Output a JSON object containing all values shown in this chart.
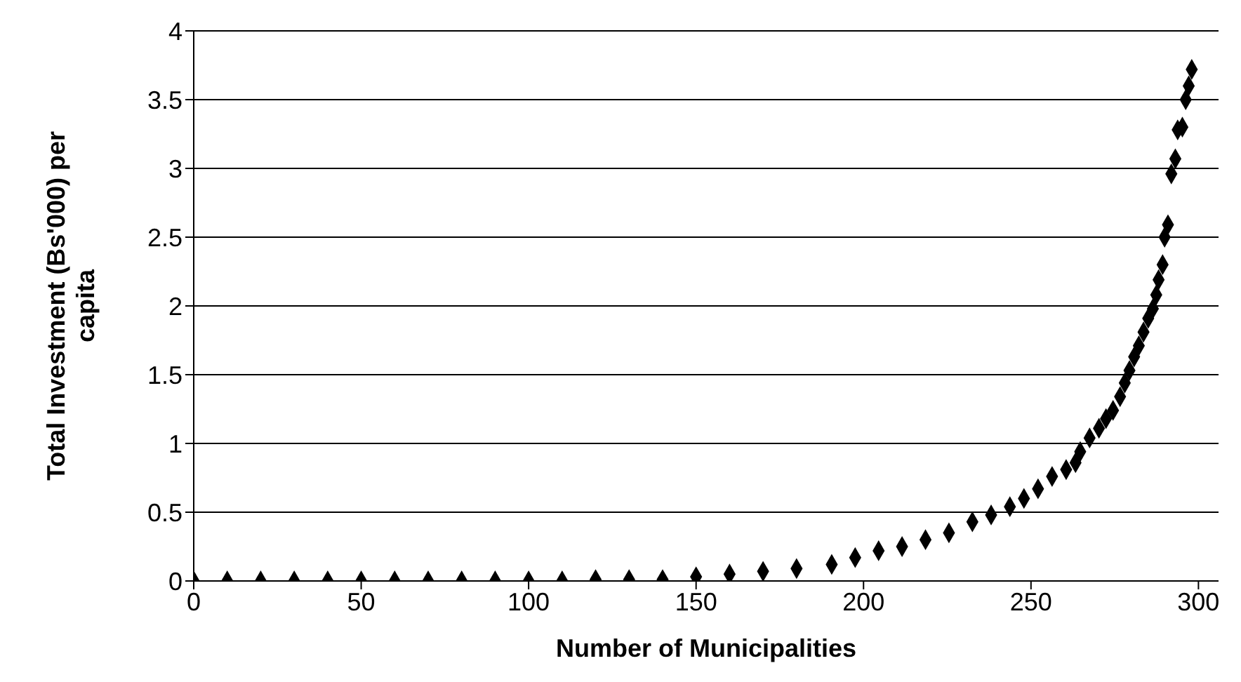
{
  "chart_data": {
    "type": "scatter",
    "xlabel": "Number of Municipalities",
    "ylabel": "Total Investment (Bs'000) per capita",
    "series": [
      {
        "color": "#000000",
        "x": [
          0,
          10,
          20,
          30,
          40,
          50,
          60,
          70,
          80,
          90,
          100,
          110,
          120,
          130,
          140,
          150,
          160,
          170,
          180,
          190.5,
          197.5,
          204.5,
          211.5,
          218.5,
          225.5,
          232.5,
          238.1,
          243.7,
          247.9,
          252.1,
          256.3,
          260.5,
          263.3,
          264.7,
          267.5,
          270.3,
          272.4,
          274.5,
          276.6,
          278,
          279.4,
          280.8,
          282.2,
          283.6,
          285,
          286.4,
          287.4,
          288.1,
          289.3,
          289.9,
          290.9,
          291.9,
          293.1,
          293.8,
          295.2,
          296.2,
          297.1,
          298
        ],
        "values": [
          0,
          0,
          0,
          0,
          0,
          0,
          0,
          0,
          0,
          0,
          0,
          0,
          0.01,
          0.01,
          0.01,
          0.03,
          0.05,
          0.07,
          0.09,
          0.12,
          0.17,
          0.22,
          0.25,
          0.3,
          0.35,
          0.43,
          0.48,
          0.54,
          0.6,
          0.67,
          0.76,
          0.81,
          0.86,
          0.94,
          1.04,
          1.11,
          1.18,
          1.24,
          1.34,
          1.44,
          1.53,
          1.63,
          1.71,
          1.81,
          1.91,
          1.98,
          2.08,
          2.19,
          2.3,
          2.5,
          2.59,
          2.96,
          3.07,
          3.28,
          3.3,
          3.5,
          3.6,
          3.72
        ]
      }
    ],
    "xlim": [
      0,
      306
    ],
    "xticks": [
      0,
      50,
      100,
      150,
      200,
      250,
      300
    ],
    "ylim": [
      0,
      4
    ],
    "yticks": [
      0,
      0.5,
      1,
      1.5,
      2,
      2.5,
      3,
      3.5,
      4
    ],
    "grid": "y",
    "marker": "diamond",
    "legend": false
  }
}
